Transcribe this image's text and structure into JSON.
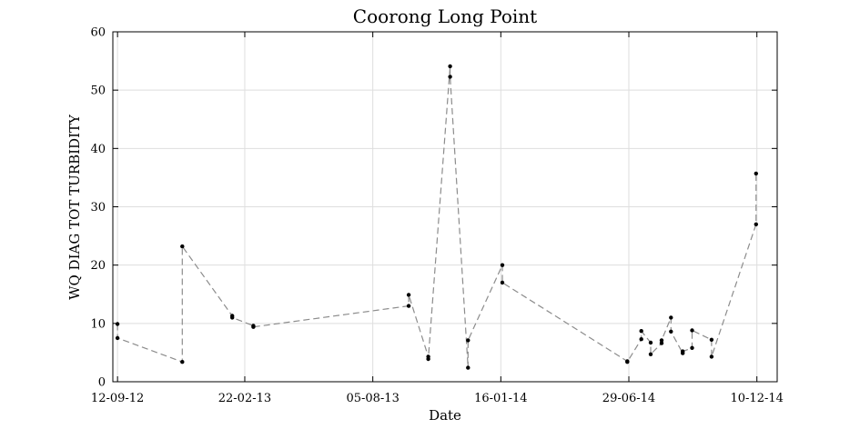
{
  "chart_data": {
    "type": "scatter",
    "title": "Coorong Long Point",
    "xlabel": "Date",
    "ylabel": "WQ DIAG TOT TURBIDITY",
    "ylim": [
      0,
      60
    ],
    "yticks": [
      0,
      10,
      20,
      30,
      40,
      50,
      60
    ],
    "xlim": [
      "2012-09-06",
      "2015-01-05"
    ],
    "xticks": [
      {
        "date": "2012-09-12",
        "label": "12-09-12"
      },
      {
        "date": "2013-02-22",
        "label": "22-02-13"
      },
      {
        "date": "2013-08-05",
        "label": "05-08-13"
      },
      {
        "date": "2014-01-16",
        "label": "16-01-14"
      },
      {
        "date": "2014-06-29",
        "label": "29-06-14"
      },
      {
        "date": "2014-12-10",
        "label": "10-12-14"
      }
    ],
    "grid": true,
    "series": [
      {
        "line": "dashed",
        "color": "#8c8c8c",
        "marker_color": "#000000",
        "points": [
          {
            "x": "2012-09-12",
            "y": 9.9
          },
          {
            "x": "2012-09-12",
            "y": 7.5
          },
          {
            "x": "2012-12-04",
            "y": 3.4
          },
          {
            "x": "2012-12-04",
            "y": 23.2
          },
          {
            "x": "2013-02-06",
            "y": 11.3
          },
          {
            "x": "2013-02-06",
            "y": 11.0
          },
          {
            "x": "2013-03-05",
            "y": 9.6
          },
          {
            "x": "2013-03-05",
            "y": 9.4
          },
          {
            "x": "2013-09-20",
            "y": 13.0
          },
          {
            "x": "2013-09-20",
            "y": 14.9
          },
          {
            "x": "2013-10-15",
            "y": 4.3
          },
          {
            "x": "2013-10-15",
            "y": 3.9
          },
          {
            "x": "2013-11-12",
            "y": 54.1
          },
          {
            "x": "2013-11-12",
            "y": 52.3
          },
          {
            "x": "2013-12-05",
            "y": 2.4
          },
          {
            "x": "2013-12-05",
            "y": 7.1
          },
          {
            "x": "2014-01-18",
            "y": 20.0
          },
          {
            "x": "2014-01-18",
            "y": 17.0
          },
          {
            "x": "2014-06-27",
            "y": 3.5
          },
          {
            "x": "2014-06-27",
            "y": 3.4
          },
          {
            "x": "2014-07-15",
            "y": 7.3
          },
          {
            "x": "2014-07-15",
            "y": 8.7
          },
          {
            "x": "2014-07-27",
            "y": 6.7
          },
          {
            "x": "2014-07-27",
            "y": 4.7
          },
          {
            "x": "2014-08-10",
            "y": 6.6
          },
          {
            "x": "2014-08-10",
            "y": 7.1
          },
          {
            "x": "2014-08-22",
            "y": 11.0
          },
          {
            "x": "2014-08-22",
            "y": 8.6
          },
          {
            "x": "2014-09-06",
            "y": 4.9
          },
          {
            "x": "2014-09-06",
            "y": 5.2
          },
          {
            "x": "2014-09-18",
            "y": 5.8
          },
          {
            "x": "2014-09-18",
            "y": 8.8
          },
          {
            "x": "2014-10-13",
            "y": 7.2
          },
          {
            "x": "2014-10-13",
            "y": 4.3
          },
          {
            "x": "2014-12-09",
            "y": 27.0
          },
          {
            "x": "2014-12-09",
            "y": 35.7
          }
        ]
      }
    ]
  }
}
